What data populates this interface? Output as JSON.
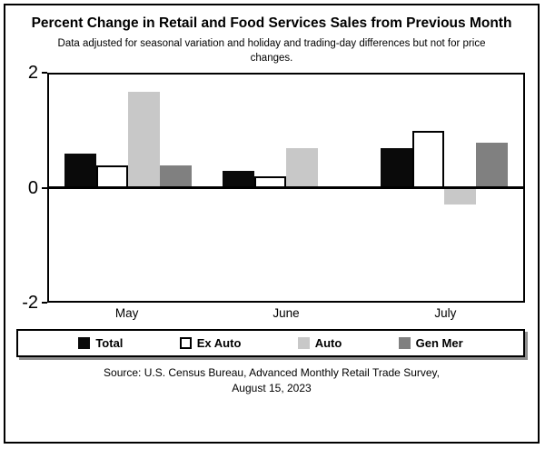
{
  "title": "Percent Change in Retail and Food Services Sales from Previous Month",
  "subtitle": "Data adjusted for seasonal variation and holiday and trading-day differences but not for price changes.",
  "source_line1": "Source: U.S. Census Bureau, Advanced Monthly Retail Trade Survey,",
  "source_line2": "August 15, 2023",
  "colors": {
    "total": "#0a0a0a",
    "ex_auto": "#ffffff",
    "auto": "#c8c8c8",
    "gen_mer": "#808080",
    "axis": "#000000"
  },
  "chart_data": {
    "type": "bar",
    "title": "Percent Change in Retail and Food Services Sales from Previous Month",
    "categories": [
      "May",
      "June",
      "July"
    ],
    "series": [
      {
        "name": "Total",
        "color": "#0a0a0a",
        "border": false,
        "values": [
          0.6,
          0.3,
          0.7
        ]
      },
      {
        "name": "Ex Auto",
        "color": "#ffffff",
        "border": true,
        "values": [
          0.4,
          0.2,
          1.0
        ]
      },
      {
        "name": "Auto",
        "color": "#c8c8c8",
        "border": false,
        "values": [
          1.7,
          0.7,
          -0.3
        ]
      },
      {
        "name": "Gen Mer",
        "color": "#808080",
        "border": false,
        "values": [
          0.4,
          0.0,
          0.8
        ]
      }
    ],
    "xlabel": "",
    "ylabel": "",
    "ylim": [
      -2,
      2
    ],
    "y_ticks": [
      {
        "label": "2",
        "value": 2
      },
      {
        "label": "0",
        "value": 0
      },
      {
        "label": "-2",
        "value": -2
      }
    ],
    "grid": false,
    "legend_position": "bottom"
  }
}
